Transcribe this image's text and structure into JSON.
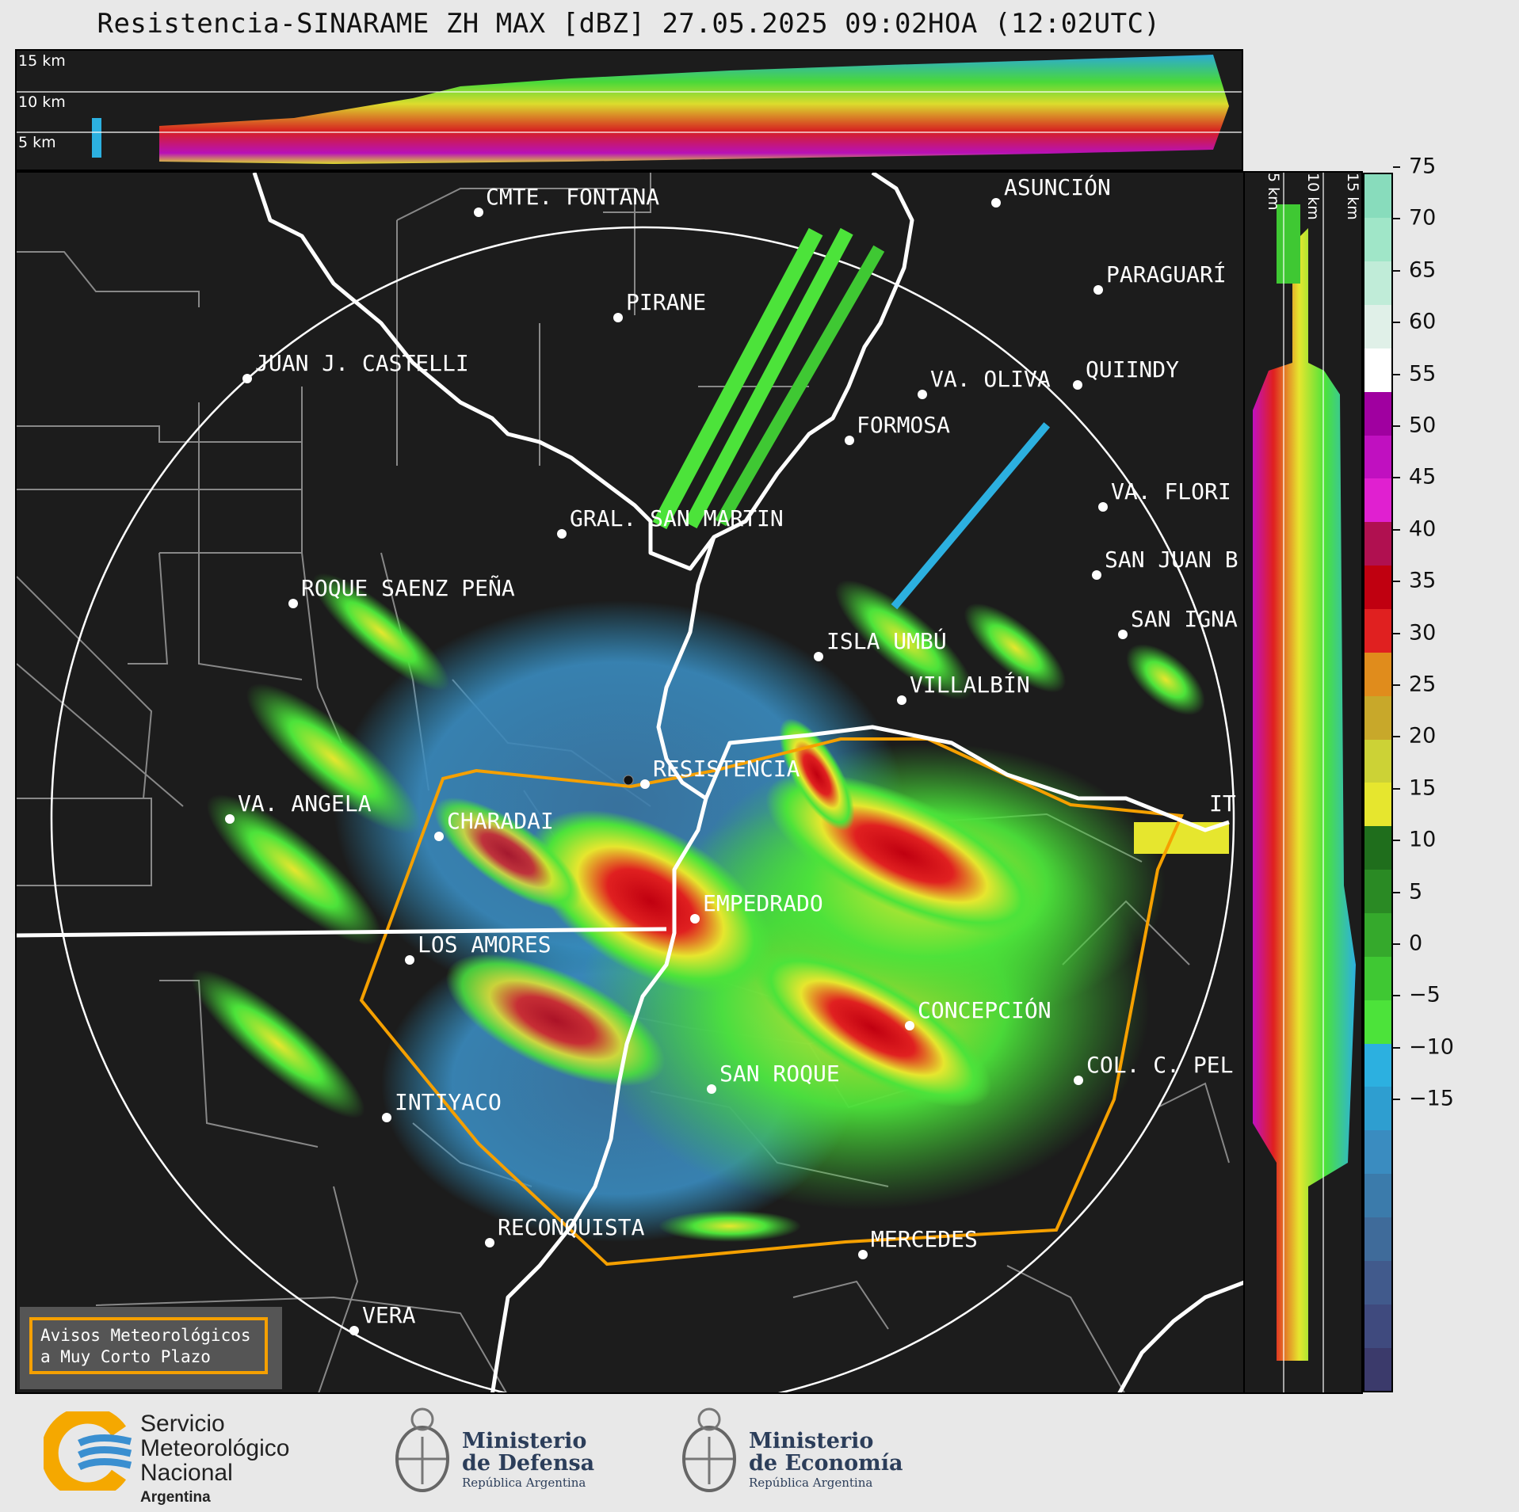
{
  "title": "Resistencia-SINARAME ZH MAX [dBZ] 27.05.2025 09:02HOA (12:02UTC)",
  "top_panel": {
    "levels": [
      "15 km",
      "10 km",
      "5 km"
    ]
  },
  "side_panel": {
    "levels": [
      "5 km",
      "10 km",
      "15 km"
    ]
  },
  "cities": [
    {
      "name": "CMTE. FONTANA"
    },
    {
      "name": "ASUNCIÓN"
    },
    {
      "name": "PARAGUARÍ"
    },
    {
      "name": "PIRANE"
    },
    {
      "name": "JUAN J. CASTELLI"
    },
    {
      "name": "VA. OLIVA"
    },
    {
      "name": "QUIINDY"
    },
    {
      "name": "FORMOSA"
    },
    {
      "name": "VA. FLORI"
    },
    {
      "name": "GRAL. SAN MARTIN"
    },
    {
      "name": "SAN JUAN B"
    },
    {
      "name": "ROQUE SAENZ PEÑA"
    },
    {
      "name": "SAN IGNA"
    },
    {
      "name": "ISLA UMBÚ"
    },
    {
      "name": "VILLALBÍN"
    },
    {
      "name": "RESISTENCIA"
    },
    {
      "name": "IT"
    },
    {
      "name": "VA. ANGELA"
    },
    {
      "name": "CHARADAI"
    },
    {
      "name": "EMPEDRADO"
    },
    {
      "name": "LOS AMORES"
    },
    {
      "name": "CONCEPCIÓN"
    },
    {
      "name": "SAN ROQUE"
    },
    {
      "name": "COL. C. PEL"
    },
    {
      "name": "INTIYACO"
    },
    {
      "name": "RECONQUISTA"
    },
    {
      "name": "MERCEDES"
    },
    {
      "name": "VERA"
    }
  ],
  "legend": {
    "line1": "Avisos Meteorológicos",
    "line2": "a Muy Corto Plazo"
  },
  "colorbar": {
    "ticks": [
      "75",
      "70",
      "65",
      "60",
      "55",
      "50",
      "45",
      "40",
      "35",
      "30",
      "25",
      "20",
      "15",
      "10",
      "5",
      "0",
      "−5",
      "−10",
      "−15"
    ],
    "colors": [
      "#3b3a6b",
      "#3f4a7e",
      "#415a8c",
      "#3f6b9a",
      "#3b7bab",
      "#3a8cc0",
      "#2e9ed0",
      "#2cb0e0",
      "#4ce33a",
      "#3fc833",
      "#35a92c",
      "#2a8a24",
      "#1f6e1c",
      "#e6e62e",
      "#ccd236",
      "#c8a82a",
      "#e08c1c",
      "#e02020",
      "#c00010",
      "#b01050",
      "#e020d0",
      "#c010c0",
      "#a000a0",
      "#ffffff",
      "#e0f0e8",
      "#c0ecd8",
      "#a0e6c8",
      "#88dcbc"
    ]
  },
  "footer": {
    "smn": {
      "l1": "Servicio",
      "l2": "Meteorológico",
      "l3": "Nacional",
      "l4": "Argentina"
    },
    "defensa": {
      "l1": "Ministerio",
      "l2": "de Defensa",
      "l3": "República Argentina"
    },
    "economia": {
      "l1": "Ministerio",
      "l2": "de Economía",
      "l3": "República Argentina"
    }
  }
}
